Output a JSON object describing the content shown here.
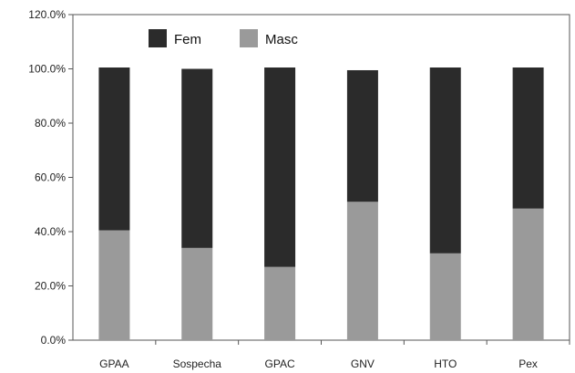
{
  "chart_data": {
    "type": "bar",
    "stacked": true,
    "title": "",
    "xlabel": "",
    "ylabel": "",
    "categories": [
      "GPAA",
      "Sospecha",
      "GPAC",
      "GNV",
      "HTO",
      "Pex"
    ],
    "series": [
      {
        "name": "Fem",
        "color": "#2b2b2b",
        "values": [
          60.0,
          66.0,
          73.5,
          48.5,
          68.5,
          52.0
        ]
      },
      {
        "name": "Masc",
        "color": "#9a9a9a",
        "values": [
          40.5,
          34.0,
          27.0,
          51.0,
          32.0,
          48.5
        ]
      }
    ],
    "ylim": [
      0,
      120
    ],
    "yticks": [
      0,
      20,
      40,
      60,
      80,
      100,
      120
    ],
    "ytick_labels": [
      "0.0%",
      "20.0%",
      "40.0%",
      "60.0%",
      "80.0%",
      "100.0%",
      "120.0%"
    ],
    "grid": false,
    "legend_position": "top-left"
  }
}
